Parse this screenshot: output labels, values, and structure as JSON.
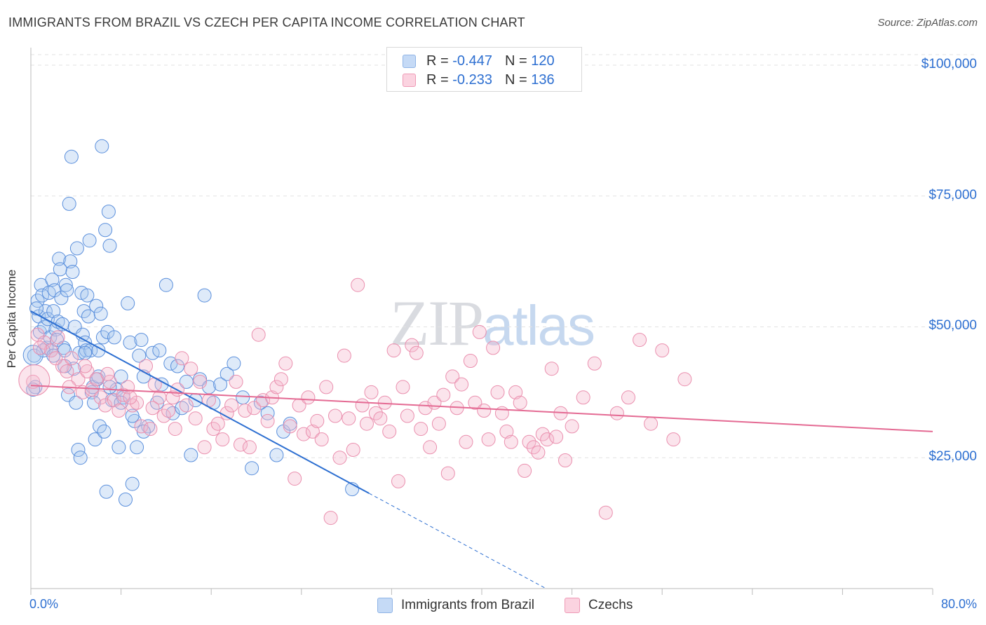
{
  "title": "IMMIGRANTS FROM BRAZIL VS CZECH PER CAPITA INCOME CORRELATION CHART",
  "source": "Source: ZipAtlas.com",
  "watermark": {
    "part1": "ZIP",
    "part2": "atlas"
  },
  "legend": {
    "rows": [
      {
        "r_label": "R = ",
        "r_value": "-0.447",
        "n_label": "N = ",
        "n_value": "120",
        "color": "#a9c8f0"
      },
      {
        "r_label": "R = ",
        "r_value": "-0.233",
        "n_label": "N = ",
        "n_value": "136",
        "color": "#f5b8cc"
      }
    ]
  },
  "bottom_legend": [
    {
      "label": "Immigrants from Brazil",
      "color": "#a9c8f0"
    },
    {
      "label": "Czechs",
      "color": "#f5b8cc"
    }
  ],
  "axis": {
    "ylabel": "Per Capita Income",
    "x_min_label": "0.0%",
    "x_max_label": "80.0%",
    "y_ticks": [
      "$100,000",
      "$75,000",
      "$50,000",
      "$25,000"
    ]
  },
  "colors": {
    "blue": "#2d6fd1",
    "blue_fill": "#a9c8f0",
    "pink": "#e46a93",
    "pink_fill": "#f5b8cc",
    "grid": "#e2e2e2"
  },
  "chart_data": {
    "type": "scatter",
    "title": "IMMIGRANTS FROM BRAZIL VS CZECH PER CAPITA INCOME CORRELATION CHART",
    "xlabel": "",
    "ylabel": "Per Capita Income",
    "xlim": [
      0,
      80
    ],
    "ylim": [
      0,
      102000
    ],
    "x_unit": "%",
    "y_ticks": [
      25000,
      50000,
      75000,
      100000
    ],
    "grid": true,
    "legend_position": "top-center",
    "series": [
      {
        "name": "Immigrants from Brazil",
        "color": "#2d6fd1",
        "r": -0.447,
        "n": 120,
        "trend": {
          "x0": 0,
          "y0": 53000,
          "x1": 30,
          "y1": 18200,
          "dash_to_x": 47,
          "dash_to_y": -1500
        },
        "points": [
          [
            0.3,
            44500
          ],
          [
            0.4,
            38500
          ],
          [
            0.6,
            55000
          ],
          [
            0.7,
            52000
          ],
          [
            0.8,
            49000
          ],
          [
            0.9,
            58000
          ],
          [
            1.0,
            56000
          ],
          [
            1.2,
            50000
          ],
          [
            1.3,
            53000
          ],
          [
            1.4,
            46000
          ],
          [
            1.5,
            51500
          ],
          [
            1.6,
            56500
          ],
          [
            1.7,
            48000
          ],
          [
            1.8,
            45500
          ],
          [
            1.9,
            59000
          ],
          [
            2.0,
            53000
          ],
          [
            2.1,
            57000
          ],
          [
            2.2,
            49500
          ],
          [
            2.3,
            47500
          ],
          [
            2.4,
            51000
          ],
          [
            2.5,
            63000
          ],
          [
            2.6,
            61000
          ],
          [
            2.7,
            55500
          ],
          [
            2.8,
            50500
          ],
          [
            2.9,
            46000
          ],
          [
            3.0,
            45500
          ],
          [
            3.1,
            58000
          ],
          [
            3.2,
            57000
          ],
          [
            3.3,
            37000
          ],
          [
            3.4,
            73500
          ],
          [
            3.5,
            62500
          ],
          [
            3.6,
            82500
          ],
          [
            3.7,
            60500
          ],
          [
            3.8,
            42000
          ],
          [
            3.9,
            50000
          ],
          [
            4.0,
            35500
          ],
          [
            4.1,
            65000
          ],
          [
            4.2,
            26500
          ],
          [
            4.3,
            45000
          ],
          [
            4.4,
            25000
          ],
          [
            4.5,
            56500
          ],
          [
            4.6,
            48500
          ],
          [
            4.7,
            53000
          ],
          [
            4.8,
            47000
          ],
          [
            4.9,
            45500
          ],
          [
            5.0,
            56000
          ],
          [
            5.1,
            52000
          ],
          [
            5.2,
            66500
          ],
          [
            5.3,
            45500
          ],
          [
            5.4,
            37500
          ],
          [
            5.5,
            38500
          ],
          [
            5.6,
            35500
          ],
          [
            5.7,
            28500
          ],
          [
            5.8,
            54000
          ],
          [
            5.9,
            40000
          ],
          [
            6.0,
            45500
          ],
          [
            6.1,
            31000
          ],
          [
            6.2,
            52500
          ],
          [
            6.3,
            84500
          ],
          [
            6.4,
            48000
          ],
          [
            6.5,
            30000
          ],
          [
            6.6,
            68500
          ],
          [
            6.7,
            18500
          ],
          [
            6.8,
            49000
          ],
          [
            6.9,
            72000
          ],
          [
            7.0,
            65500
          ],
          [
            7.2,
            36000
          ],
          [
            7.4,
            48000
          ],
          [
            7.6,
            38000
          ],
          [
            7.8,
            27000
          ],
          [
            8.0,
            40500
          ],
          [
            8.2,
            36500
          ],
          [
            8.4,
            17000
          ],
          [
            8.6,
            54500
          ],
          [
            8.8,
            47000
          ],
          [
            9.0,
            20000
          ],
          [
            9.2,
            32000
          ],
          [
            9.4,
            27000
          ],
          [
            9.6,
            44500
          ],
          [
            9.8,
            47500
          ],
          [
            10.0,
            40500
          ],
          [
            10.4,
            31000
          ],
          [
            10.8,
            45000
          ],
          [
            11.2,
            35500
          ],
          [
            11.4,
            45500
          ],
          [
            11.6,
            39000
          ],
          [
            12.0,
            58000
          ],
          [
            12.4,
            43000
          ],
          [
            12.6,
            33500
          ],
          [
            13.0,
            42500
          ],
          [
            13.4,
            34500
          ],
          [
            13.8,
            39500
          ],
          [
            14.2,
            25500
          ],
          [
            14.6,
            36000
          ],
          [
            15.0,
            40000
          ],
          [
            15.4,
            56000
          ],
          [
            15.8,
            38500
          ],
          [
            16.2,
            35500
          ],
          [
            16.8,
            39000
          ],
          [
            17.4,
            41000
          ],
          [
            18.0,
            43000
          ],
          [
            18.8,
            36500
          ],
          [
            19.6,
            23000
          ],
          [
            20.4,
            35500
          ],
          [
            21.0,
            33500
          ],
          [
            21.8,
            25500
          ],
          [
            22.4,
            30000
          ],
          [
            23.0,
            31500
          ],
          [
            28.5,
            19000
          ],
          [
            0.2,
            38000
          ],
          [
            0.5,
            53500
          ],
          [
            1.1,
            45500
          ],
          [
            2.0,
            44500
          ],
          [
            3.0,
            42500
          ],
          [
            4.8,
            45000
          ],
          [
            6.0,
            40500
          ],
          [
            7.0,
            38500
          ],
          [
            8.0,
            35500
          ],
          [
            9.0,
            33000
          ],
          [
            10.0,
            30000
          ]
        ]
      },
      {
        "name": "Czechs",
        "color": "#e46a93",
        "r": -0.233,
        "n": 136,
        "trend": {
          "x0": 0,
          "y0": 38800,
          "x1": 80,
          "y1": 30000
        },
        "points": [
          [
            0.2,
            39500
          ],
          [
            0.6,
            48500
          ],
          [
            1.2,
            47000
          ],
          [
            1.8,
            45500
          ],
          [
            2.4,
            48000
          ],
          [
            2.8,
            42500
          ],
          [
            3.2,
            41500
          ],
          [
            3.6,
            44000
          ],
          [
            4.2,
            40000
          ],
          [
            4.6,
            37500
          ],
          [
            5.0,
            41500
          ],
          [
            5.4,
            38000
          ],
          [
            5.8,
            40000
          ],
          [
            6.2,
            36500
          ],
          [
            6.6,
            35000
          ],
          [
            7.0,
            39500
          ],
          [
            7.4,
            36000
          ],
          [
            7.8,
            34000
          ],
          [
            8.2,
            37000
          ],
          [
            8.6,
            38500
          ],
          [
            9.0,
            35000
          ],
          [
            9.4,
            35500
          ],
          [
            9.8,
            31000
          ],
          [
            10.2,
            42500
          ],
          [
            10.6,
            30500
          ],
          [
            11.0,
            39000
          ],
          [
            11.4,
            36500
          ],
          [
            11.8,
            33000
          ],
          [
            12.2,
            34000
          ],
          [
            12.6,
            36500
          ],
          [
            13.0,
            38000
          ],
          [
            13.4,
            44000
          ],
          [
            13.8,
            35000
          ],
          [
            14.2,
            42000
          ],
          [
            14.6,
            32500
          ],
          [
            15.0,
            39500
          ],
          [
            15.4,
            27000
          ],
          [
            15.8,
            36000
          ],
          [
            16.2,
            30500
          ],
          [
            16.6,
            31500
          ],
          [
            17.0,
            28500
          ],
          [
            17.4,
            33500
          ],
          [
            17.8,
            35000
          ],
          [
            18.2,
            39500
          ],
          [
            18.6,
            27500
          ],
          [
            19.0,
            34000
          ],
          [
            19.4,
            27000
          ],
          [
            19.8,
            34500
          ],
          [
            20.2,
            48500
          ],
          [
            20.6,
            36000
          ],
          [
            21.0,
            32000
          ],
          [
            21.4,
            36500
          ],
          [
            21.8,
            38500
          ],
          [
            22.2,
            40000
          ],
          [
            22.6,
            43000
          ],
          [
            23.0,
            31000
          ],
          [
            23.4,
            21000
          ],
          [
            23.8,
            35000
          ],
          [
            24.2,
            29500
          ],
          [
            24.6,
            36500
          ],
          [
            25.0,
            30000
          ],
          [
            25.4,
            32000
          ],
          [
            25.8,
            28500
          ],
          [
            26.2,
            38500
          ],
          [
            26.6,
            13500
          ],
          [
            27.0,
            33000
          ],
          [
            27.4,
            25000
          ],
          [
            27.8,
            44500
          ],
          [
            28.2,
            32500
          ],
          [
            28.6,
            26500
          ],
          [
            29.0,
            58000
          ],
          [
            29.4,
            35000
          ],
          [
            29.8,
            31500
          ],
          [
            30.2,
            37500
          ],
          [
            30.6,
            33500
          ],
          [
            31.0,
            32500
          ],
          [
            31.4,
            35500
          ],
          [
            31.8,
            30000
          ],
          [
            32.2,
            45500
          ],
          [
            32.6,
            20500
          ],
          [
            33.0,
            38500
          ],
          [
            33.4,
            33000
          ],
          [
            33.8,
            46500
          ],
          [
            34.2,
            45000
          ],
          [
            34.6,
            30500
          ],
          [
            35.0,
            34500
          ],
          [
            35.4,
            27000
          ],
          [
            35.8,
            35500
          ],
          [
            36.2,
            31500
          ],
          [
            36.6,
            37000
          ],
          [
            37.0,
            22000
          ],
          [
            37.4,
            40500
          ],
          [
            37.8,
            34500
          ],
          [
            38.2,
            39000
          ],
          [
            38.6,
            28000
          ],
          [
            39.0,
            43500
          ],
          [
            39.4,
            35500
          ],
          [
            39.8,
            49000
          ],
          [
            40.2,
            34000
          ],
          [
            40.6,
            28500
          ],
          [
            41.0,
            46000
          ],
          [
            41.4,
            37500
          ],
          [
            41.8,
            33500
          ],
          [
            42.2,
            30000
          ],
          [
            42.6,
            28000
          ],
          [
            43.0,
            37500
          ],
          [
            43.4,
            35500
          ],
          [
            43.8,
            22500
          ],
          [
            44.2,
            28000
          ],
          [
            44.6,
            27000
          ],
          [
            45.0,
            26000
          ],
          [
            45.4,
            29500
          ],
          [
            45.8,
            28500
          ],
          [
            46.2,
            42000
          ],
          [
            46.6,
            29000
          ],
          [
            47.0,
            33500
          ],
          [
            47.4,
            24500
          ],
          [
            48.0,
            31000
          ],
          [
            49.0,
            36500
          ],
          [
            50.0,
            43000
          ],
          [
            51.0,
            14500
          ],
          [
            52.0,
            33500
          ],
          [
            53.0,
            36500
          ],
          [
            54.0,
            47500
          ],
          [
            55.0,
            31500
          ],
          [
            56.0,
            45500
          ],
          [
            57.0,
            28500
          ],
          [
            58.0,
            40000
          ],
          [
            0.8,
            46000
          ],
          [
            2.2,
            44000
          ],
          [
            3.4,
            38500
          ],
          [
            4.8,
            42500
          ],
          [
            6.8,
            41000
          ],
          [
            8.8,
            36500
          ],
          [
            10.8,
            34500
          ],
          [
            12.8,
            30500
          ]
        ]
      }
    ]
  }
}
